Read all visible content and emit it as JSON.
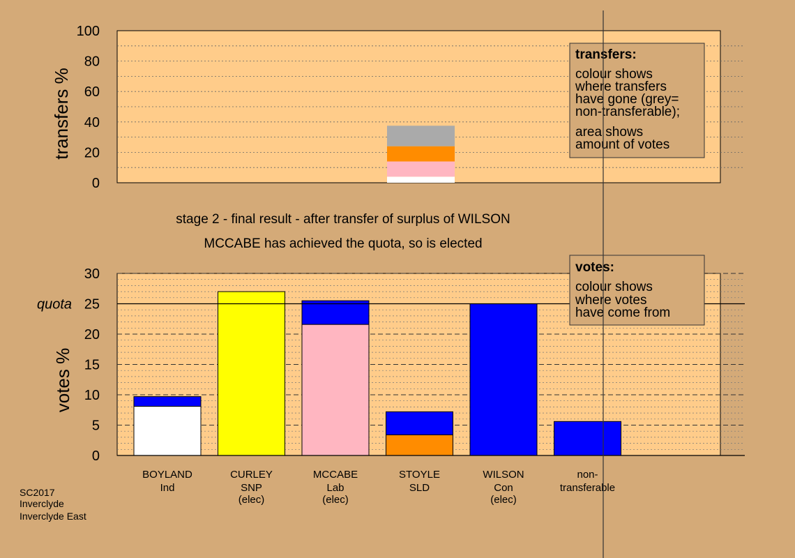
{
  "chart_data": [
    {
      "type": "bar",
      "stacked": true,
      "ylabel": "transfers %",
      "ylim": [
        0,
        100
      ],
      "yticks": [
        0,
        20,
        40,
        60,
        80,
        100
      ],
      "grid": true,
      "stacks": [
        {
          "category": "STOYLE",
          "segments": [
            {
              "to": "BOYLAND",
              "value": 4,
              "color": "#ffffff"
            },
            {
              "to": "MCCABE",
              "value": 10,
              "color": "#ffb6c1"
            },
            {
              "to": "STOYLE",
              "value": 10,
              "color": "#ff8c00"
            },
            {
              "to": "non-transferable",
              "value": 13.5,
              "color": "#aaaaaa"
            }
          ]
        }
      ],
      "legend_box": {
        "title": "transfers:",
        "lines": [
          "colour shows",
          "where transfers",
          "have gone (grey=",
          "non-transferable);",
          "area shows",
          "amount of votes"
        ]
      }
    },
    {
      "type": "bar",
      "stacked": true,
      "ylabel": "votes %",
      "ylim": [
        0,
        30
      ],
      "yticks": [
        0,
        5,
        10,
        15,
        20,
        25,
        30
      ],
      "quota": {
        "label": "quota",
        "value": 25
      },
      "grid": true,
      "bars": [
        {
          "name": "BOYLAND",
          "party": "Ind",
          "note": "",
          "segments": [
            {
              "value": 8.1,
              "color": "#ffffff"
            },
            {
              "value": 1.6,
              "color": "#0000ff"
            }
          ]
        },
        {
          "name": "CURLEY",
          "party": "SNP",
          "note": "(elec)",
          "segments": [
            {
              "value": 27,
              "color": "#ffff00"
            }
          ]
        },
        {
          "name": "MCCABE",
          "party": "Lab",
          "note": "(elec)",
          "segments": [
            {
              "value": 21.6,
              "color": "#ffb6c1"
            },
            {
              "value": 3.9,
              "color": "#0000ff"
            }
          ]
        },
        {
          "name": "STOYLE",
          "party": "SLD",
          "note": "",
          "segments": [
            {
              "value": 3.4,
              "color": "#ff8c00"
            },
            {
              "value": 3.8,
              "color": "#0000ff"
            }
          ]
        },
        {
          "name": "WILSON",
          "party": "Con",
          "note": "(elec)",
          "segments": [
            {
              "value": 25,
              "color": "#0000ff"
            }
          ]
        },
        {
          "name": "non-",
          "party": "transferable",
          "note": "",
          "segments": [
            {
              "value": 5.6,
              "color": "#0000ff"
            }
          ]
        }
      ],
      "legend_box": {
        "title": "votes:",
        "lines": [
          "colour shows",
          "where votes",
          "have come from"
        ]
      }
    }
  ],
  "captions": [
    "stage 2 - final result - after transfer of surplus of WILSON",
    "MCCABE has achieved the quota, so is elected"
  ],
  "footer": [
    "SC2017",
    "Inverclyde",
    "Inverclyde East"
  ]
}
